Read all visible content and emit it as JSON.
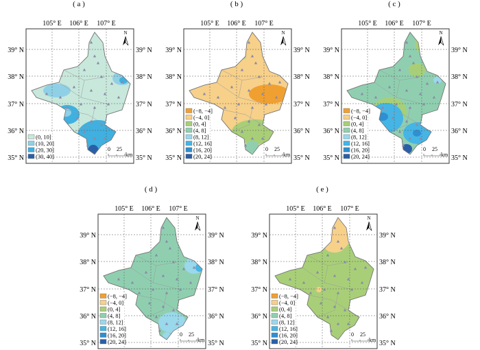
{
  "panels": [
    {
      "label": "( a )",
      "base": "(0, 10]",
      "legend": [
        "(0, 10]",
        "(10, 20]",
        "(20, 30]",
        "(30, 40]"
      ],
      "legend_colors": [
        "#c8e8dc",
        "#8fd0e6",
        "#3fb0e0",
        "#2a5fa8"
      ]
    },
    {
      "label": "( b )",
      "legend_ref": "full"
    },
    {
      "label": "( c )",
      "legend_ref": "full"
    },
    {
      "label": "( d )",
      "legend_ref": "full"
    },
    {
      "label": "( e )",
      "legend_ref": "full"
    }
  ],
  "full_legend": [
    "(−8, −4]",
    "(−4, 0]",
    "(0, 4]",
    "(4, 8]",
    "(8, 12]",
    "(12, 16]",
    "(16, 20]",
    "(20, 24]"
  ],
  "full_colors": [
    "#f0a030",
    "#f7d08a",
    "#a8cf78",
    "#8fcfb0",
    "#9ad8ec",
    "#45b5e6",
    "#2f8fd0",
    "#2a5fa8"
  ],
  "lon_ticks": [
    "105° E",
    "106° E",
    "107° E"
  ],
  "lat_ticks": [
    "39° N",
    "38° N",
    "37° N",
    "36° N",
    "35° N"
  ],
  "north_label": "N",
  "scale": {
    "zero": "0",
    "value": "25",
    "unit": "km"
  }
}
